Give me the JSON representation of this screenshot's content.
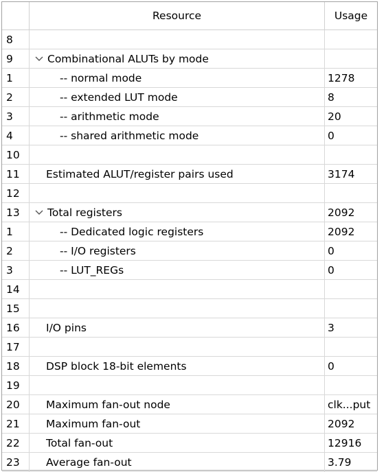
{
  "header": {
    "resource": "Resource",
    "usage": "Usage"
  },
  "rows": [
    {
      "num": "8",
      "resource": "",
      "usage": "",
      "level": 0,
      "expander": false
    },
    {
      "num": "9",
      "resource": "Combinational ALUTs by mode",
      "usage": "",
      "level": 0,
      "expander": true
    },
    {
      "num": "1",
      "resource": "-- normal mode",
      "usage": "1278",
      "level": 1,
      "expander": false
    },
    {
      "num": "2",
      "resource": "-- extended LUT mode",
      "usage": "8",
      "level": 1,
      "expander": false
    },
    {
      "num": "3",
      "resource": "-- arithmetic mode",
      "usage": "20",
      "level": 1,
      "expander": false
    },
    {
      "num": "4",
      "resource": "-- shared arithmetic mode",
      "usage": "0",
      "level": 1,
      "expander": false
    },
    {
      "num": "10",
      "resource": "",
      "usage": "",
      "level": 0,
      "expander": false
    },
    {
      "num": "11",
      "resource": "Estimated ALUT/register pairs used",
      "usage": "3174",
      "level": 0,
      "expander": false
    },
    {
      "num": "12",
      "resource": "",
      "usage": "",
      "level": 0,
      "expander": false
    },
    {
      "num": "13",
      "resource": "Total registers",
      "usage": "2092",
      "level": 0,
      "expander": true
    },
    {
      "num": "1",
      "resource": "-- Dedicated logic registers",
      "usage": "2092",
      "level": 1,
      "expander": false
    },
    {
      "num": "2",
      "resource": "-- I/O registers",
      "usage": "0",
      "level": 1,
      "expander": false
    },
    {
      "num": "3",
      "resource": "-- LUT_REGs",
      "usage": "0",
      "level": 1,
      "expander": false
    },
    {
      "num": "14",
      "resource": "",
      "usage": "",
      "level": 0,
      "expander": false
    },
    {
      "num": "15",
      "resource": "",
      "usage": "",
      "level": 0,
      "expander": false
    },
    {
      "num": "16",
      "resource": "I/O pins",
      "usage": "3",
      "level": 0,
      "expander": false
    },
    {
      "num": "17",
      "resource": "",
      "usage": "",
      "level": 0,
      "expander": false
    },
    {
      "num": "18",
      "resource": "DSP block 18-bit elements",
      "usage": "0",
      "level": 0,
      "expander": false
    },
    {
      "num": "19",
      "resource": "",
      "usage": "",
      "level": 0,
      "expander": false
    },
    {
      "num": "20",
      "resource": "Maximum fan-out node",
      "usage": "clk...put",
      "level": 0,
      "expander": false
    },
    {
      "num": "21",
      "resource": "Maximum fan-out",
      "usage": "2092",
      "level": 0,
      "expander": false
    },
    {
      "num": "22",
      "resource": "Total fan-out",
      "usage": "12916",
      "level": 0,
      "expander": false
    },
    {
      "num": "23",
      "resource": "Average fan-out",
      "usage": "3.79",
      "level": 0,
      "expander": false
    }
  ]
}
